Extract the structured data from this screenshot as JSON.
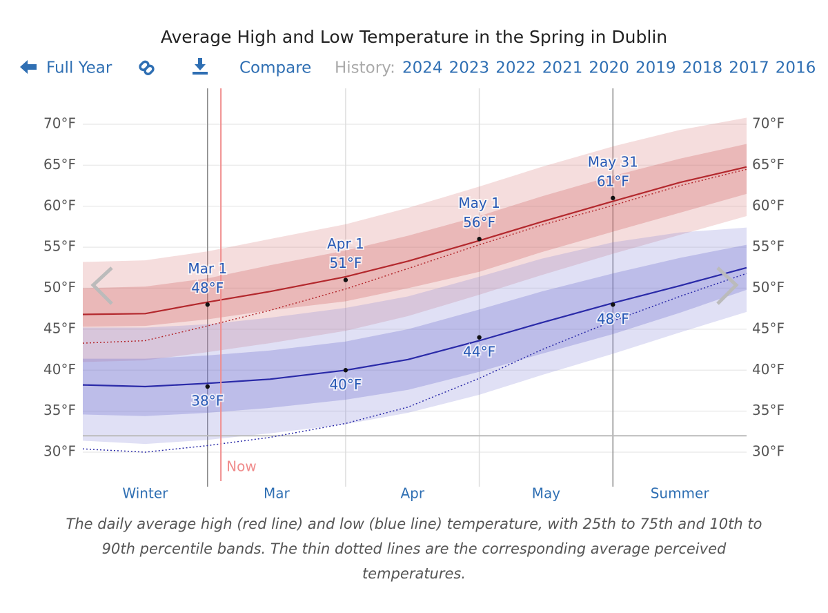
{
  "toolbar": {
    "back": "Full Year",
    "compare": "Compare",
    "history_label": "History:",
    "years": [
      "2024",
      "2023",
      "2022",
      "2021",
      "2020",
      "2019",
      "2018",
      "2017",
      "2016"
    ]
  },
  "chart_data": {
    "type": "band-line",
    "title": "Average High and Low Temperature in the Spring in Dublin",
    "x": [
      "Feb 1",
      "Feb 15",
      "Mar 1",
      "Mar 15",
      "Apr 1",
      "Apr 15",
      "May 1",
      "May 15",
      "May 31",
      "Jun 15",
      "Jun 30"
    ],
    "xlim": [
      "Feb 1",
      "Jun 30"
    ],
    "ylim": [
      30,
      70
    ],
    "yticks": [
      {
        "value": 30,
        "label": "30°F"
      },
      {
        "value": 35,
        "label": "35°F"
      },
      {
        "value": 40,
        "label": "40°F"
      },
      {
        "value": 45,
        "label": "45°F"
      },
      {
        "value": 50,
        "label": "50°F"
      },
      {
        "value": 55,
        "label": "55°F"
      },
      {
        "value": 60,
        "label": "60°F"
      },
      {
        "value": 65,
        "label": "65°F"
      },
      {
        "value": 70,
        "label": "70°F"
      }
    ],
    "grid": true,
    "series": [
      {
        "color": "#b3282d",
        "band_inner": "rgba(205,90,90,0.28)",
        "band_outer": "rgba(215,120,120,0.25)",
        "values": [
          46.8,
          46.9,
          48.3,
          49.6,
          51.4,
          53.3,
          55.8,
          58.1,
          60.6,
          62.9,
          64.8
        ],
        "perceived": [
          43.3,
          43.6,
          45.4,
          47.3,
          49.9,
          52.4,
          55.3,
          57.7,
          60.1,
          62.5,
          64.5
        ],
        "p10": [
          41.0,
          41.2,
          42.2,
          43.3,
          44.8,
          46.6,
          49.2,
          51.6,
          54.2,
          56.5,
          58.8
        ],
        "p25": [
          45.3,
          45.4,
          46.2,
          47.3,
          48.4,
          50.0,
          52.0,
          54.4,
          56.9,
          59.2,
          61.5
        ],
        "p75": [
          50.0,
          50.2,
          51.2,
          52.8,
          54.6,
          56.4,
          58.8,
          61.2,
          63.7,
          65.8,
          67.6
        ],
        "p90": [
          53.2,
          53.4,
          54.5,
          56.0,
          57.8,
          59.8,
          62.4,
          64.8,
          67.3,
          69.3,
          70.8
        ]
      },
      {
        "color": "#2a2aa8",
        "band_inner": "rgba(110,110,205,0.3)",
        "band_outer": "rgba(130,130,215,0.25)",
        "values": [
          38.2,
          38.0,
          38.4,
          38.9,
          40.0,
          41.3,
          43.6,
          45.8,
          48.2,
          50.3,
          52.5
        ],
        "perceived": [
          30.4,
          30.0,
          30.8,
          31.8,
          33.5,
          35.5,
          39.0,
          42.5,
          46.0,
          49.0,
          51.8
        ],
        "p10": [
          31.4,
          31.0,
          31.5,
          32.3,
          33.4,
          34.8,
          37.0,
          39.4,
          42.0,
          44.6,
          47.1
        ],
        "p25": [
          34.6,
          34.4,
          34.8,
          35.4,
          36.4,
          37.6,
          39.8,
          42.0,
          44.4,
          47.0,
          49.8
        ],
        "p75": [
          41.4,
          41.4,
          41.8,
          42.4,
          43.5,
          45.0,
          47.4,
          49.6,
          51.8,
          53.7,
          55.3
        ],
        "p90": [
          45.2,
          45.2,
          45.6,
          46.4,
          47.6,
          49.0,
          51.4,
          53.6,
          55.6,
          56.8,
          57.4
        ]
      }
    ],
    "high_annotations": [
      {
        "x": "Mar 1",
        "value": 48,
        "label": "48°F"
      },
      {
        "x": "Apr 1",
        "value": 51,
        "label": "51°F"
      },
      {
        "x": "May 1",
        "value": 56,
        "label": "56°F"
      },
      {
        "x": "May 31",
        "value": 61,
        "label": "61°F"
      }
    ],
    "low_annotations": [
      {
        "x": "Mar 1",
        "value": 38,
        "label": "38°F"
      },
      {
        "x": "Apr 1",
        "value": 40,
        "label": "40°F"
      },
      {
        "x": "May 1",
        "value": 44,
        "label": "44°F"
      },
      {
        "x": "May 31",
        "value": 48,
        "label": "48°F"
      }
    ],
    "vlines": [
      {
        "x": "Mar 1",
        "color": "#888"
      },
      {
        "x": "Apr 1",
        "color": "#ddd"
      },
      {
        "x": "May 1",
        "color": "#ddd"
      },
      {
        "x": "May 31",
        "color": "#888"
      }
    ],
    "hline": 32,
    "now": {
      "x": "Mar 4",
      "label": "Now",
      "color": "#f08c8c"
    },
    "x_labels": [
      {
        "label": "Winter",
        "from": "Feb 1",
        "to": "Mar 1"
      },
      {
        "label": "Mar",
        "from": "Mar 1",
        "to": "Apr 1"
      },
      {
        "label": "Apr",
        "from": "Apr 1",
        "to": "May 1"
      },
      {
        "label": "May",
        "from": "May 1",
        "to": "May 31"
      },
      {
        "label": "Summer",
        "from": "May 31",
        "to": "Jun 30"
      }
    ],
    "caption": "The daily average high (red line) and low (blue line) temperature, with 25th to 75th and 10th to 90th percentile bands. The thin dotted lines are the corresponding average perceived temperatures."
  }
}
